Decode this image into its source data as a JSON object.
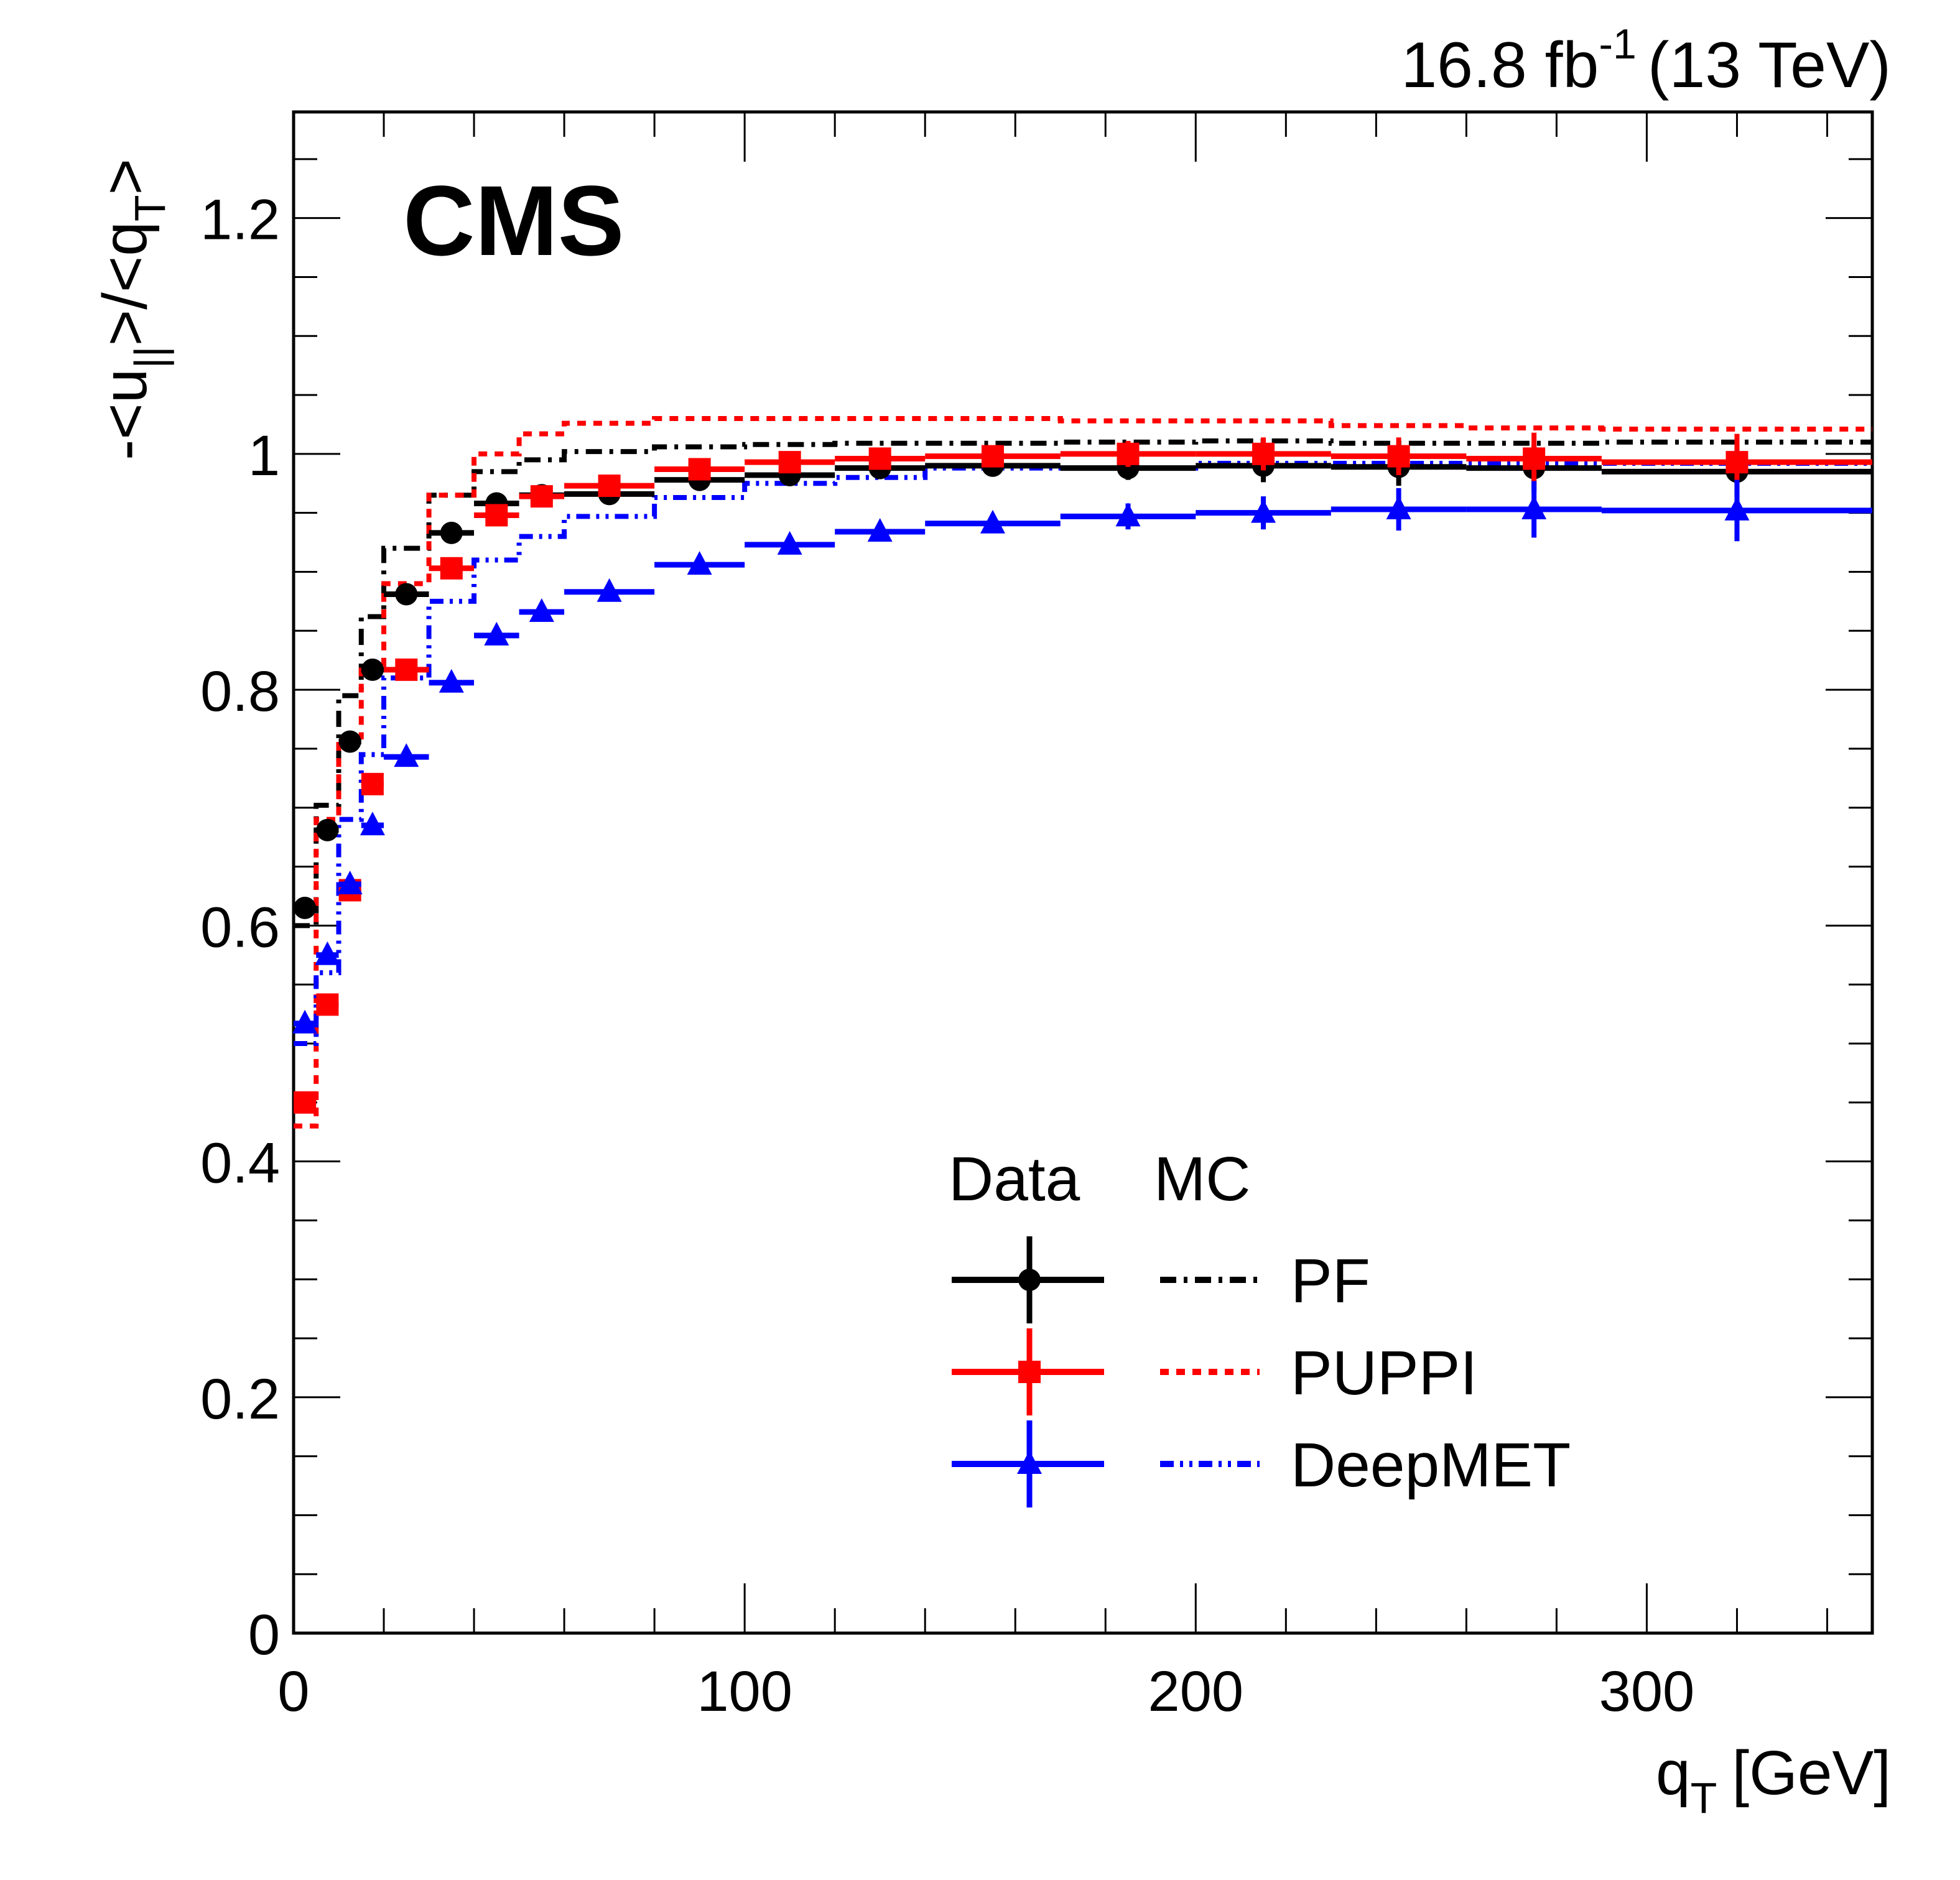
{
  "header": {
    "experiment": "CMS",
    "lumi_value": "16.8 fb",
    "lumi_exp": "-1",
    "energy": "(13 TeV)"
  },
  "chart_data": {
    "type": "line",
    "title": "",
    "xlabel": "q",
    "xlabel_sub": "T",
    "xlabel_unit": "[GeV]",
    "ylabel": "-<u∥>/<qT>",
    "ylabel_parts": {
      "a": "-<u",
      "a_sub": "||",
      "b": ">/<q",
      "b_sub": "T",
      "c": ">"
    },
    "xlim": [
      0,
      350
    ],
    "ylim": [
      0,
      1.29
    ],
    "x_ticks": [
      0,
      100,
      200,
      300
    ],
    "x_tick_labels": [
      "0",
      "100",
      "200",
      "300"
    ],
    "y_ticks": [
      0,
      0.2,
      0.4,
      0.6,
      0.8,
      1.0,
      1.2
    ],
    "y_tick_labels": [
      "0",
      "0.2",
      "0.4",
      "0.6",
      "0.8",
      "1",
      "1.2"
    ],
    "grid": false,
    "legend": {
      "placement": "bottom-right",
      "header_data": "Data",
      "header_mc": "MC",
      "entries": [
        "PF",
        "PUPPI",
        "DeepMET"
      ]
    },
    "bin_edges": [
      0,
      5,
      10,
      15,
      20,
      30,
      40,
      50,
      60,
      80,
      100,
      120,
      140,
      170,
      200,
      230,
      260,
      290,
      350
    ],
    "data_x": [
      2.5,
      7.5,
      12.5,
      17.5,
      25,
      35,
      45,
      55,
      70,
      90,
      110,
      130,
      155,
      185,
      215,
      245,
      275,
      320
    ],
    "series": [
      {
        "name": "PF",
        "kind": "data",
        "color": "#000000",
        "marker": "circle",
        "values": [
          0.615,
          0.681,
          0.756,
          0.817,
          0.881,
          0.933,
          0.958,
          0.965,
          0.966,
          0.978,
          0.982,
          0.988,
          0.99,
          0.988,
          0.99,
          0.989,
          0.988,
          0.985
        ],
        "errors": [
          0.003,
          0.003,
          0.003,
          0.003,
          0.003,
          0.003,
          0.003,
          0.003,
          0.003,
          0.004,
          0.005,
          0.006,
          0.007,
          0.01,
          0.014,
          0.016,
          0.02,
          0.022
        ]
      },
      {
        "name": "PUPPI",
        "kind": "data",
        "color": "#ff0000",
        "marker": "square",
        "values": [
          0.45,
          0.533,
          0.63,
          0.72,
          0.817,
          0.903,
          0.948,
          0.964,
          0.973,
          0.987,
          0.993,
          0.996,
          0.998,
          1.0,
          1.0,
          0.998,
          0.996,
          0.993
        ],
        "errors": [
          0.004,
          0.004,
          0.004,
          0.004,
          0.004,
          0.004,
          0.004,
          0.004,
          0.004,
          0.005,
          0.006,
          0.007,
          0.008,
          0.011,
          0.014,
          0.016,
          0.022,
          0.024
        ]
      },
      {
        "name": "DeepMET",
        "kind": "data",
        "color": "#0000ff",
        "marker": "triangle",
        "values": [
          0.517,
          0.575,
          0.635,
          0.685,
          0.743,
          0.806,
          0.846,
          0.866,
          0.883,
          0.906,
          0.923,
          0.934,
          0.941,
          0.947,
          0.95,
          0.953,
          0.953,
          0.952
        ],
        "errors": [
          0.004,
          0.004,
          0.004,
          0.004,
          0.004,
          0.004,
          0.004,
          0.004,
          0.004,
          0.005,
          0.006,
          0.007,
          0.008,
          0.011,
          0.014,
          0.018,
          0.024,
          0.026
        ]
      },
      {
        "name": "PF",
        "kind": "mc",
        "color": "#000000",
        "dash": "dash-dot",
        "values": [
          0.6,
          0.702,
          0.795,
          0.862,
          0.92,
          0.965,
          0.985,
          0.995,
          1.002,
          1.006,
          1.008,
          1.009,
          1.009,
          1.01,
          1.011,
          1.009,
          1.009,
          1.01
        ]
      },
      {
        "name": "PUPPI",
        "kind": "mc",
        "color": "#ff0000",
        "dash": "dotted",
        "values": [
          0.43,
          0.69,
          0.76,
          0.82,
          0.89,
          0.965,
          1.0,
          1.017,
          1.026,
          1.03,
          1.03,
          1.03,
          1.03,
          1.028,
          1.028,
          1.024,
          1.022,
          1.021
        ]
      },
      {
        "name": "DeepMET",
        "kind": "mc",
        "color": "#0000ff",
        "dash": "dash-dot-dot",
        "values": [
          0.5,
          0.56,
          0.69,
          0.745,
          0.81,
          0.875,
          0.91,
          0.93,
          0.947,
          0.963,
          0.975,
          0.98,
          0.988,
          0.988,
          0.992,
          0.992,
          0.992,
          0.992
        ]
      }
    ]
  }
}
